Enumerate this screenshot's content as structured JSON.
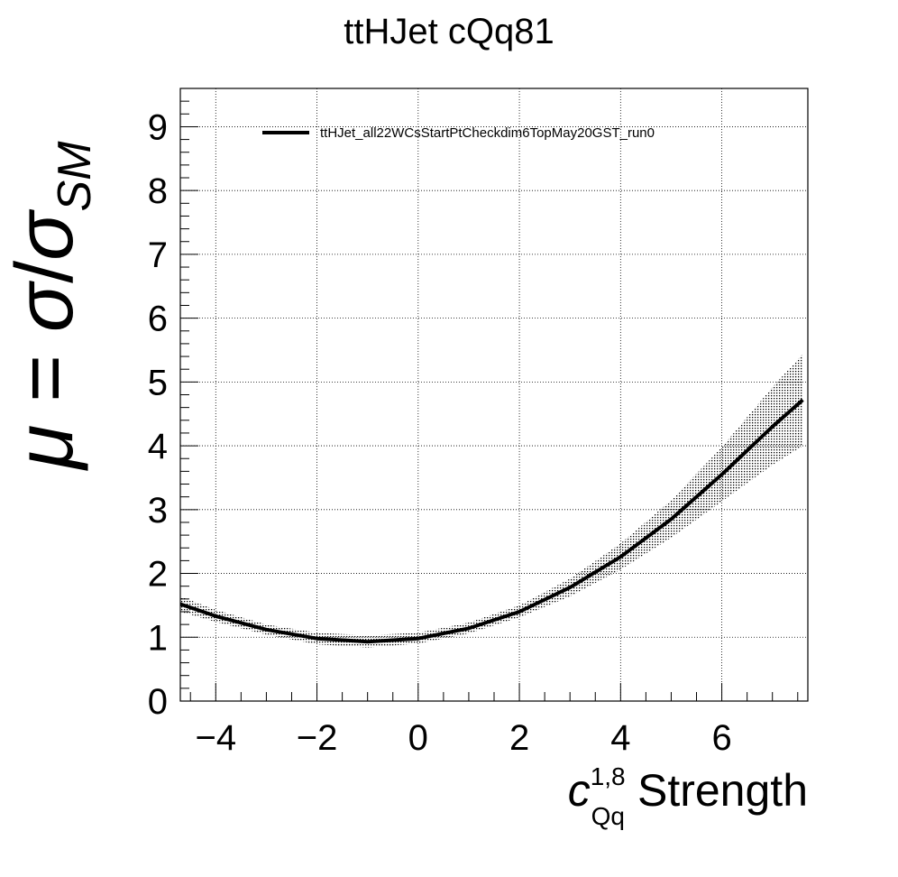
{
  "chart_data": {
    "type": "line",
    "title": "ttHJet cQq81",
    "xlabel": {
      "symbol": "c",
      "superscript": "1,8",
      "subscript": "Qq",
      "text": "Strength"
    },
    "ylabel": {
      "mu": "μ",
      "equals": " = ",
      "sigma": "σ",
      "slash": "/",
      "sigma2": "σ",
      "subscript": "SM"
    },
    "xlim": [
      -4.7,
      7.7
    ],
    "ylim": [
      0,
      9.6
    ],
    "x_ticks": [
      -4,
      -2,
      0,
      2,
      4,
      6
    ],
    "x_tick_labels": [
      "−4",
      "−2",
      "0",
      "2",
      "4",
      "6"
    ],
    "y_ticks": [
      0,
      1,
      2,
      3,
      4,
      5,
      6,
      7,
      8,
      9
    ],
    "y_tick_labels": [
      "0",
      "1",
      "2",
      "3",
      "4",
      "5",
      "6",
      "7",
      "8",
      "9"
    ],
    "grid": true,
    "legend_position": "top",
    "series": [
      {
        "name": "ttHJet_all22WCsStartPtCheckdim6TopMay20GST_run0",
        "color": "#000000",
        "x": [
          -4.7,
          -4.0,
          -3.0,
          -2.0,
          -1.0,
          0.0,
          1.0,
          2.0,
          3.0,
          4.0,
          5.0,
          6.0,
          7.0,
          7.6
        ],
        "y": [
          1.52,
          1.33,
          1.12,
          0.98,
          0.93,
          0.98,
          1.14,
          1.4,
          1.78,
          2.26,
          2.85,
          3.55,
          4.3,
          4.72
        ],
        "band_low": [
          1.4,
          1.24,
          1.04,
          0.89,
          0.84,
          0.9,
          1.06,
          1.31,
          1.64,
          2.06,
          2.56,
          3.13,
          3.7,
          4.0
        ],
        "band_high": [
          1.64,
          1.43,
          1.2,
          1.07,
          1.03,
          1.07,
          1.23,
          1.5,
          1.92,
          2.47,
          3.15,
          3.98,
          4.92,
          5.44
        ]
      }
    ]
  }
}
